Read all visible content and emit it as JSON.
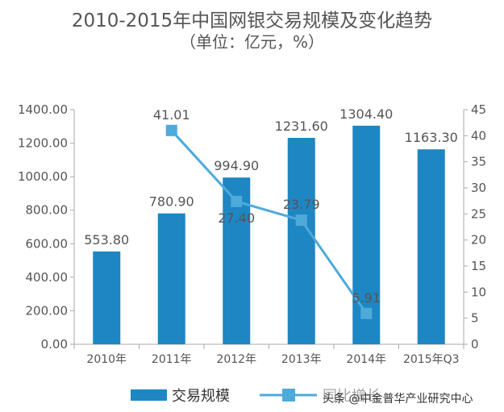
{
  "chart_data": {
    "type": "bar",
    "title": "2010-2015年中国网银交易规模及变化趋势",
    "subtitle": "（单位：亿元，%）",
    "categories": [
      "2010年",
      "2011年",
      "2012年",
      "2013年",
      "2014年",
      "2015年Q3"
    ],
    "series": [
      {
        "name": "交易规模",
        "type": "bar",
        "axis": "left",
        "color": "#1e86c2",
        "values": [
          553.8,
          780.9,
          994.9,
          1231.6,
          1304.4,
          1163.3
        ],
        "labels": [
          "553.80",
          "780.90",
          "994.90",
          "1231.60",
          "1304.40",
          "1163.30"
        ]
      },
      {
        "name": "同比增长",
        "type": "line",
        "axis": "right",
        "color": "#4eaadb",
        "values": [
          null,
          41.01,
          27.4,
          23.79,
          5.91,
          null
        ],
        "labels": [
          null,
          "41.01",
          "27.40",
          "23.79",
          "5.91",
          null
        ]
      }
    ],
    "y_left": {
      "min": 0,
      "max": 1400,
      "step": 200,
      "tick_labels": [
        "0.00",
        "200.00",
        "400.00",
        "600.00",
        "800.00",
        "1000.00",
        "1200.00",
        "1400.00"
      ]
    },
    "y_right": {
      "min": 0,
      "max": 45,
      "step": 5,
      "tick_labels": [
        "0",
        "5",
        "10",
        "15",
        "20",
        "25",
        "30",
        "35",
        "40",
        "45"
      ]
    },
    "grid": false,
    "legend_position": "bottom"
  },
  "watermark": "头条 @中金普华产业研究中心",
  "colors": {
    "axis": "#aaaaaa",
    "text": "#555555"
  }
}
